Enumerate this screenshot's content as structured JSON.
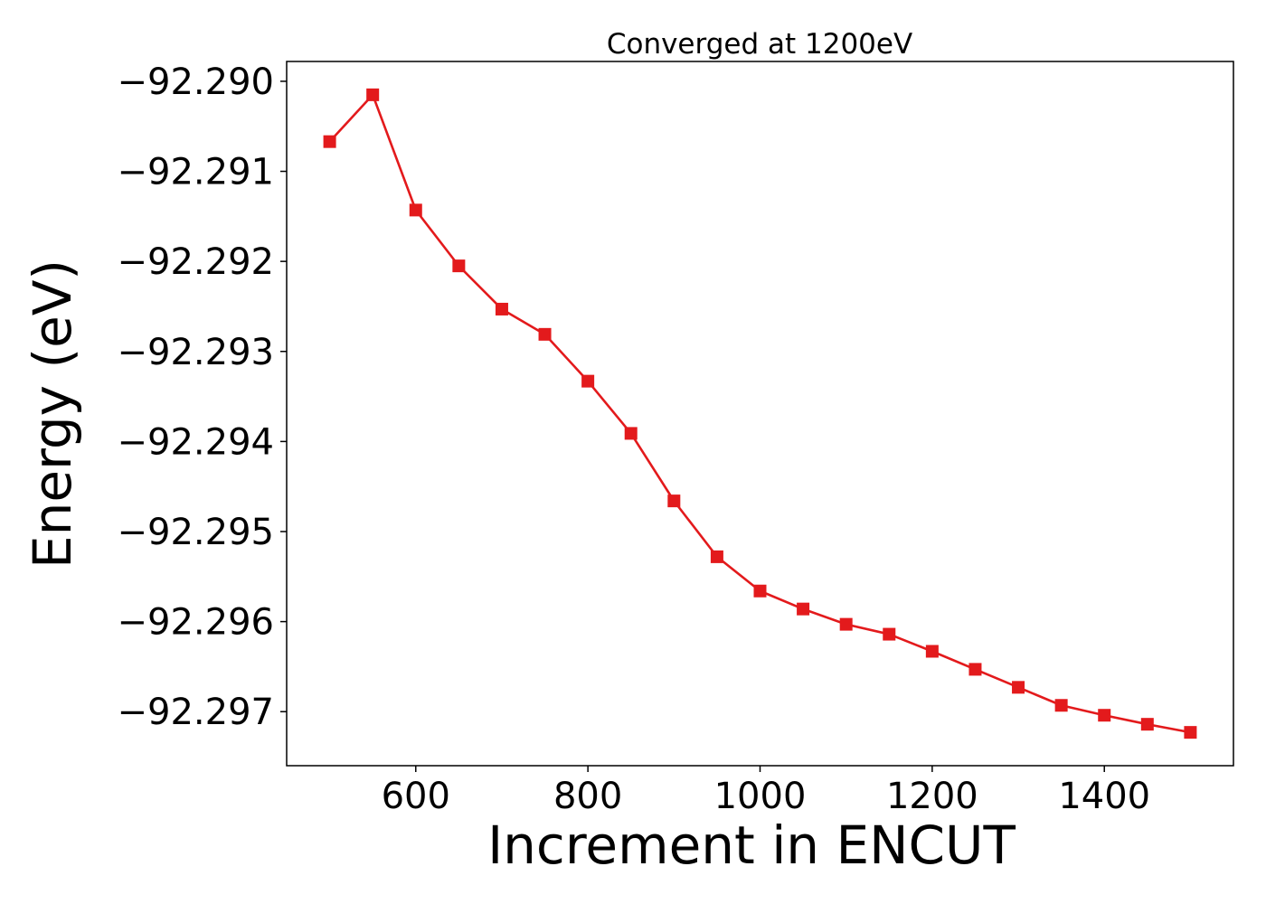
{
  "chart_data": {
    "type": "line",
    "title": "Converged at 1200eV",
    "xlabel": "Increment in ENCUT",
    "ylabel": "Energy (eV)",
    "xlim": [
      450,
      1550
    ],
    "ylim": [
      -92.2976,
      -92.28978
    ],
    "x_ticks": [
      600,
      800,
      1000,
      1200,
      1400
    ],
    "y_ticks": [
      -92.29,
      -92.291,
      -92.292,
      -92.293,
      -92.294,
      -92.295,
      -92.296,
      -92.297
    ],
    "y_tick_labels": [
      "−92.290",
      "−92.291",
      "−92.292",
      "−92.293",
      "−92.294",
      "−92.295",
      "−92.296",
      "−92.297"
    ],
    "grid": false,
    "marker": "square",
    "series": [
      {
        "color": "#e31a1c",
        "x": [
          500,
          550,
          600,
          650,
          700,
          750,
          800,
          850,
          900,
          950,
          1000,
          1050,
          1100,
          1150,
          1200,
          1250,
          1300,
          1350,
          1400,
          1450,
          1500
        ],
        "y": [
          -92.29067,
          -92.29015,
          -92.29143,
          -92.29205,
          -92.29253,
          -92.29281,
          -92.29333,
          -92.29391,
          -92.29466,
          -92.29528,
          -92.29566,
          -92.29586,
          -92.29603,
          -92.29614,
          -92.29633,
          -92.29653,
          -92.29673,
          -92.29693,
          -92.29704,
          -92.29714,
          -92.29723
        ]
      }
    ]
  }
}
